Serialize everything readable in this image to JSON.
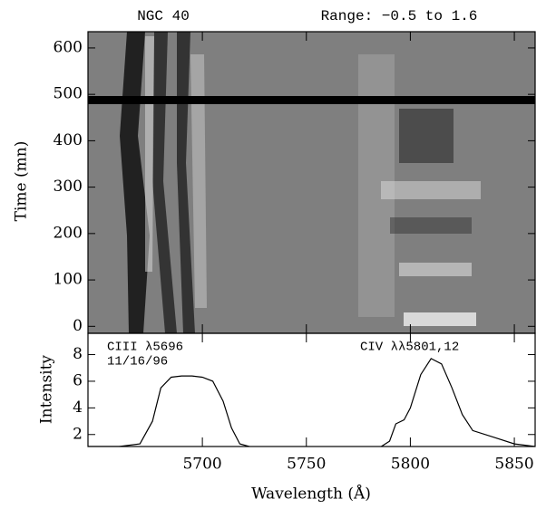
{
  "chart_data": [
    {
      "type": "image",
      "title": "NGC 40",
      "subtitle": "Range: −0.5 to 1.6",
      "ylabel": "Time (mn)",
      "xlim": [
        5645,
        5860
      ],
      "xticks": [
        5700,
        5750,
        5800,
        5850
      ],
      "ylim": [
        -15,
        635
      ],
      "yticks": [
        0,
        100,
        200,
        300,
        400,
        500,
        600
      ]
    },
    {
      "type": "line",
      "xlabel": "Wavelength (Å)",
      "ylabel": "Intensity",
      "annotations": [
        "CIII λ5696",
        "11/16/96",
        "CIV λλ5801,12"
      ],
      "color": "#000000",
      "x": [
        5645,
        5660,
        5670,
        5676,
        5680,
        5685,
        5690,
        5695,
        5700,
        5705,
        5710,
        5714,
        5718,
        5725,
        5750,
        5775,
        5785,
        5790,
        5793,
        5797,
        5800,
        5805,
        5810,
        5815,
        5820,
        5825,
        5830,
        5840,
        5850,
        5860
      ],
      "values": [
        1.1,
        1.1,
        1.3,
        3,
        5.5,
        6.3,
        6.4,
        6.4,
        6.3,
        6,
        4.5,
        2.5,
        1.3,
        1.0,
        1.0,
        1.0,
        1.0,
        1.5,
        2.8,
        3.1,
        4.0,
        6.5,
        7.7,
        7.3,
        5.5,
        3.5,
        2.3,
        1.8,
        1.3,
        1.1
      ],
      "xlim": [
        5645,
        5860
      ],
      "xticks": [
        5700,
        5750,
        5800,
        5850
      ],
      "ylim": [
        1.1,
        9.6
      ],
      "yticks": [
        2,
        4,
        6,
        8
      ]
    }
  ]
}
